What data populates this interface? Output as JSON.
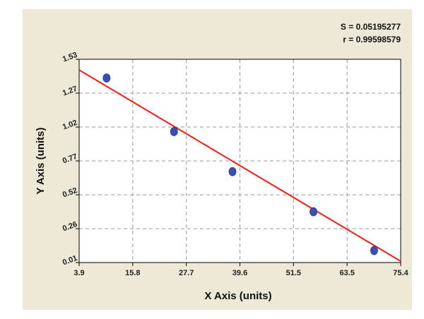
{
  "chart_data": {
    "type": "scatter",
    "title": "",
    "xlabel": "X Axis (units)",
    "ylabel": "Y Axis (units)",
    "xlim": [
      3.9,
      75.4
    ],
    "ylim": [
      0.01,
      1.53
    ],
    "x_ticks": [
      "3.9",
      "15.8",
      "27.7",
      "39.6",
      "51.5",
      "63.5",
      "75.4"
    ],
    "y_ticks": [
      "0.01",
      "0.26",
      "0.52",
      "0.77",
      "1.02",
      "1.27",
      "1.53"
    ],
    "grid": true,
    "legend": "none",
    "stats": {
      "s_label": "S = 0.05195277",
      "r_label": "r = 0.99598579"
    },
    "series": [
      {
        "type": "scatter",
        "x": [
          10.0,
          25.0,
          38.0,
          56.0,
          69.5
        ],
        "y": [
          1.39,
          0.99,
          0.69,
          0.39,
          0.1
        ],
        "color": "#3a4fb0"
      }
    ],
    "fit_line": {
      "x": [
        3.9,
        75.4
      ],
      "y": [
        1.45,
        0.02
      ],
      "color": "#e8201a"
    },
    "colors": {
      "background": "#ece9d6",
      "plot_area": "#ffffff",
      "grid": "#9a9a9a"
    }
  }
}
